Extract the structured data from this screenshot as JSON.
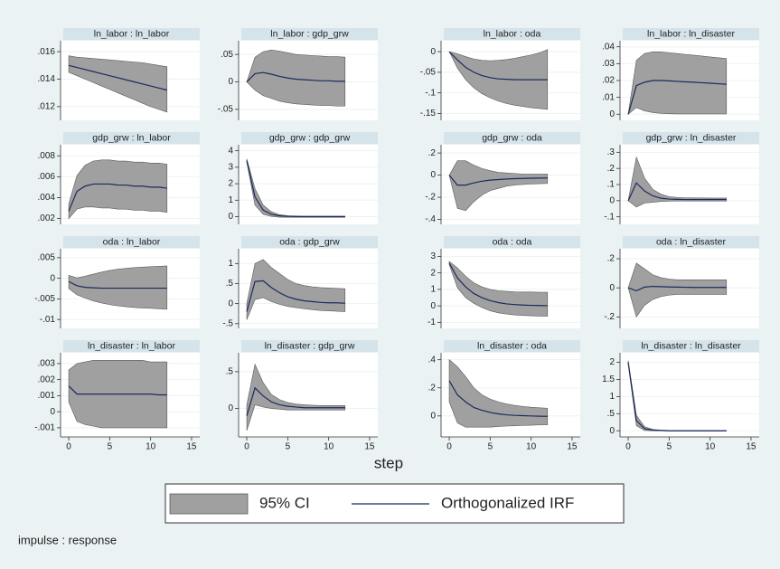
{
  "chart_data": [
    {
      "type": "line",
      "title": "ln_labor : ln_labor",
      "x": [
        0,
        1,
        2,
        3,
        4,
        5,
        6,
        7,
        8,
        9,
        10,
        11,
        12
      ],
      "xlim": [
        -1,
        16
      ],
      "ylim": [
        0.0112,
        0.0166
      ],
      "yticks": [
        {
          "value": 0.012,
          "label": ".012"
        },
        {
          "value": 0.014,
          "label": ".014"
        },
        {
          "value": 0.016,
          "label": ".016"
        }
      ],
      "irf": [
        0.015,
        0.01485,
        0.0147,
        0.01455,
        0.0144,
        0.01425,
        0.0141,
        0.01395,
        0.0138,
        0.01365,
        0.0135,
        0.01335,
        0.0132
      ],
      "ci_lower": [
        0.0145,
        0.01425,
        0.014,
        0.01375,
        0.0135,
        0.01325,
        0.013,
        0.01275,
        0.0125,
        0.01225,
        0.012,
        0.0118,
        0.0116
      ],
      "ci_upper": [
        0.0157,
        0.0156,
        0.01555,
        0.0155,
        0.01545,
        0.0154,
        0.01535,
        0.0153,
        0.01525,
        0.0152,
        0.0151,
        0.015,
        0.0149
      ]
    },
    {
      "type": "line",
      "title": "ln_labor : gdp_grw",
      "x": [
        0,
        1,
        2,
        3,
        4,
        5,
        6,
        7,
        8,
        9,
        10,
        11,
        12
      ],
      "xlim": [
        -1,
        16
      ],
      "ylim": [
        -0.065,
        0.07
      ],
      "yticks": [
        {
          "value": -0.05,
          "label": "-.05"
        },
        0,
        {
          "value": 0.05,
          "label": ".05"
        }
      ],
      "irf": [
        0,
        0.015,
        0.017,
        0.014,
        0.01,
        0.007,
        0.005,
        0.004,
        0.003,
        0.002,
        0.002,
        0.001,
        0.001
      ],
      "ci_lower": [
        0,
        -0.015,
        -0.025,
        -0.03,
        -0.035,
        -0.038,
        -0.04,
        -0.041,
        -0.042,
        -0.043,
        -0.043,
        -0.044,
        -0.044
      ],
      "ci_upper": [
        0,
        0.045,
        0.055,
        0.058,
        0.056,
        0.053,
        0.05,
        0.049,
        0.048,
        0.047,
        0.046,
        0.046,
        0.045
      ]
    },
    {
      "type": "line",
      "title": "ln_labor : oda",
      "x": [
        0,
        1,
        2,
        3,
        4,
        5,
        6,
        7,
        8,
        9,
        10,
        11,
        12
      ],
      "xlim": [
        -1,
        16
      ],
      "ylim": [
        -0.16,
        0.02
      ],
      "yticks": [
        {
          "value": -0.15,
          "label": "-.15"
        },
        {
          "value": -0.1,
          "label": "-.1"
        },
        {
          "value": -0.05,
          "label": "-.05"
        },
        0
      ],
      "irf": [
        0,
        -0.02,
        -0.038,
        -0.05,
        -0.058,
        -0.063,
        -0.066,
        -0.067,
        -0.068,
        -0.068,
        -0.068,
        -0.068,
        -0.068
      ],
      "ci_lower": [
        0,
        -0.04,
        -0.068,
        -0.088,
        -0.102,
        -0.112,
        -0.12,
        -0.126,
        -0.13,
        -0.133,
        -0.136,
        -0.138,
        -0.14
      ],
      "ci_upper": [
        0,
        -0.005,
        -0.012,
        -0.018,
        -0.021,
        -0.022,
        -0.021,
        -0.019,
        -0.016,
        -0.012,
        -0.008,
        -0.003,
        0.005
      ]
    },
    {
      "type": "line",
      "title": "ln_labor : ln_disaster",
      "x": [
        0,
        1,
        2,
        3,
        4,
        5,
        6,
        7,
        8,
        9,
        10,
        11,
        12
      ],
      "xlim": [
        -1,
        16
      ],
      "ylim": [
        -0.002,
        0.042
      ],
      "yticks": [
        0,
        {
          "value": 0.01,
          "label": ".01"
        },
        {
          "value": 0.02,
          "label": ".02"
        },
        {
          "value": 0.03,
          "label": ".03"
        },
        {
          "value": 0.04,
          "label": ".04"
        }
      ],
      "irf": [
        0,
        0.017,
        0.019,
        0.02,
        0.02,
        0.0198,
        0.0195,
        0.0192,
        0.019,
        0.0187,
        0.0184,
        0.0181,
        0.0178
      ],
      "ci_lower": [
        0,
        0.004,
        0.002,
        0.001,
        0.0005,
        0.0003,
        0.0002,
        0.0002,
        0.0002,
        0.0002,
        0.0002,
        0.0002,
        0.0002
      ],
      "ci_upper": [
        0,
        0.032,
        0.036,
        0.037,
        0.037,
        0.0365,
        0.036,
        0.0355,
        0.035,
        0.0345,
        0.034,
        0.0335,
        0.033
      ]
    },
    {
      "type": "line",
      "title": "gdp_grw : ln_labor",
      "x": [
        0,
        1,
        2,
        3,
        4,
        5,
        6,
        7,
        8,
        9,
        10,
        11,
        12
      ],
      "xlim": [
        -1,
        16
      ],
      "ylim": [
        0.0017,
        0.0088
      ],
      "yticks": [
        {
          "value": 0.002,
          "label": ".002"
        },
        {
          "value": 0.004,
          "label": ".004"
        },
        {
          "value": 0.006,
          "label": ".006"
        },
        {
          "value": 0.008,
          "label": ".008"
        }
      ],
      "irf": [
        0.0027,
        0.0046,
        0.0051,
        0.0053,
        0.0053,
        0.0053,
        0.0052,
        0.0052,
        0.0051,
        0.0051,
        0.005,
        0.005,
        0.0049
      ],
      "ci_lower": [
        0.002,
        0.0029,
        0.0031,
        0.0031,
        0.003,
        0.003,
        0.0029,
        0.0029,
        0.0028,
        0.0028,
        0.0027,
        0.0027,
        0.0026
      ],
      "ci_upper": [
        0.0034,
        0.0061,
        0.0071,
        0.0075,
        0.0076,
        0.0076,
        0.0075,
        0.0075,
        0.0074,
        0.0074,
        0.0073,
        0.0073,
        0.0072
      ]
    },
    {
      "type": "line",
      "title": "gdp_grw : gdp_grw",
      "x": [
        0,
        1,
        2,
        3,
        4,
        5,
        6,
        7,
        8,
        9,
        10,
        11,
        12
      ],
      "xlim": [
        -1,
        16
      ],
      "ylim": [
        -0.3,
        4.2
      ],
      "yticks": [
        0,
        1,
        2,
        3,
        4
      ],
      "irf": [
        3.4,
        1.2,
        0.4,
        0.15,
        0.05,
        0.02,
        0.01,
        0,
        0,
        0,
        0,
        0,
        0
      ],
      "ci_lower": [
        3.3,
        0.7,
        0.15,
        0.02,
        -0.03,
        -0.04,
        -0.04,
        -0.04,
        -0.04,
        -0.04,
        -0.04,
        -0.04,
        -0.04
      ],
      "ci_upper": [
        3.5,
        1.7,
        0.7,
        0.3,
        0.12,
        0.06,
        0.04,
        0.03,
        0.03,
        0.03,
        0.03,
        0.03,
        0.03
      ]
    },
    {
      "type": "line",
      "title": "gdp_grw : oda",
      "x": [
        0,
        1,
        2,
        3,
        4,
        5,
        6,
        7,
        8,
        9,
        10,
        11,
        12
      ],
      "xlim": [
        -1,
        16
      ],
      "ylim": [
        -0.42,
        0.25
      ],
      "yticks": [
        {
          "value": -0.4,
          "label": "-.4"
        },
        {
          "value": -0.2,
          "label": "-.2"
        },
        0,
        {
          "value": 0.2,
          "label": ".2"
        }
      ],
      "irf": [
        0,
        -0.09,
        -0.09,
        -0.07,
        -0.055,
        -0.045,
        -0.04,
        -0.035,
        -0.032,
        -0.03,
        -0.028,
        -0.027,
        -0.026
      ],
      "ci_lower": [
        0,
        -0.3,
        -0.32,
        -0.24,
        -0.18,
        -0.14,
        -0.12,
        -0.1,
        -0.09,
        -0.085,
        -0.08,
        -0.077,
        -0.075
      ],
      "ci_upper": [
        0,
        0.13,
        0.13,
        0.09,
        0.06,
        0.04,
        0.025,
        0.02,
        0.015,
        0.01,
        0.01,
        0.01,
        0.01
      ]
    },
    {
      "type": "line",
      "title": "gdp_grw : ln_disaster",
      "x": [
        0,
        1,
        2,
        3,
        4,
        5,
        6,
        7,
        8,
        9,
        10,
        11,
        12
      ],
      "xlim": [
        -1,
        16
      ],
      "ylim": [
        -0.13,
        0.33
      ],
      "yticks": [
        {
          "value": -0.1,
          "label": "-.1"
        },
        0,
        {
          "value": 0.1,
          "label": ".1"
        },
        {
          "value": 0.2,
          "label": ".2"
        },
        {
          "value": 0.3,
          "label": ".3"
        }
      ],
      "irf": [
        0,
        0.11,
        0.06,
        0.03,
        0.015,
        0.01,
        0.008,
        0.007,
        0.007,
        0.007,
        0.007,
        0.007,
        0.007
      ],
      "ci_lower": [
        0,
        -0.04,
        -0.015,
        -0.01,
        -0.005,
        -0.003,
        -0.002,
        -0.002,
        -0.002,
        -0.002,
        -0.002,
        -0.002,
        -0.002
      ],
      "ci_upper": [
        0,
        0.27,
        0.14,
        0.07,
        0.04,
        0.025,
        0.02,
        0.018,
        0.017,
        0.017,
        0.016,
        0.016,
        0.016
      ]
    },
    {
      "type": "line",
      "title": "oda : ln_labor",
      "x": [
        0,
        1,
        2,
        3,
        4,
        5,
        6,
        7,
        8,
        9,
        10,
        11,
        12
      ],
      "xlim": [
        -1,
        16
      ],
      "ylim": [
        -0.0115,
        0.0065
      ],
      "yticks": [
        {
          "value": -0.01,
          "label": "-.01"
        },
        {
          "value": -0.005,
          "label": "-.005"
        },
        0,
        {
          "value": 0.005,
          "label": ".005"
        }
      ],
      "irf": [
        -0.0008,
        -0.0018,
        -0.0022,
        -0.0023,
        -0.0024,
        -0.0024,
        -0.0024,
        -0.0024,
        -0.0024,
        -0.0024,
        -0.0024,
        -0.0024,
        -0.0024
      ],
      "ci_lower": [
        -0.0025,
        -0.004,
        -0.0048,
        -0.0055,
        -0.006,
        -0.0064,
        -0.0067,
        -0.0069,
        -0.0071,
        -0.0072,
        -0.0073,
        -0.0074,
        -0.0075
      ],
      "ci_upper": [
        0.0007,
        0.0001,
        0.0005,
        0.001,
        0.0015,
        0.0019,
        0.0022,
        0.0024,
        0.0026,
        0.0027,
        0.0028,
        0.0029,
        0.003
      ]
    },
    {
      "type": "line",
      "title": "oda : gdp_grw",
      "x": [
        0,
        1,
        2,
        3,
        4,
        5,
        6,
        7,
        8,
        9,
        10,
        11,
        12
      ],
      "xlim": [
        -1,
        16
      ],
      "ylim": [
        -0.55,
        1.3
      ],
      "yticks": [
        {
          "value": -0.5,
          "label": "-.5"
        },
        0,
        {
          "value": 0.5,
          "label": ".5"
        },
        1
      ],
      "irf": [
        -0.2,
        0.55,
        0.57,
        0.4,
        0.27,
        0.17,
        0.11,
        0.07,
        0.05,
        0.03,
        0.02,
        0.02,
        0.01
      ],
      "ci_lower": [
        -0.4,
        0.1,
        0.15,
        0.05,
        -0.02,
        -0.07,
        -0.1,
        -0.13,
        -0.15,
        -0.17,
        -0.18,
        -0.19,
        -0.2
      ],
      "ci_upper": [
        0,
        1,
        1.1,
        0.9,
        0.75,
        0.6,
        0.5,
        0.45,
        0.42,
        0.4,
        0.39,
        0.38,
        0.37
      ]
    },
    {
      "type": "line",
      "title": "oda : oda",
      "x": [
        0,
        1,
        2,
        3,
        4,
        5,
        6,
        7,
        8,
        9,
        10,
        11,
        12
      ],
      "xlim": [
        -1,
        16
      ],
      "ylim": [
        -1.2,
        3.3
      ],
      "yticks": [
        -1,
        0,
        1,
        2,
        3
      ],
      "irf": [
        2.6,
        1.7,
        1.15,
        0.75,
        0.5,
        0.32,
        0.2,
        0.12,
        0.08,
        0.05,
        0.03,
        0.02,
        0.01
      ],
      "ci_lower": [
        2.5,
        1.1,
        0.5,
        0.15,
        -0.1,
        -0.3,
        -0.42,
        -0.5,
        -0.55,
        -0.58,
        -0.6,
        -0.62,
        -0.63
      ],
      "ci_upper": [
        2.7,
        2.3,
        1.8,
        1.4,
        1.15,
        1,
        0.92,
        0.88,
        0.85,
        0.84,
        0.84,
        0.83,
        0.83
      ]
    },
    {
      "type": "line",
      "title": "oda : ln_disaster",
      "x": [
        0,
        1,
        2,
        3,
        4,
        5,
        6,
        7,
        8,
        9,
        10,
        11,
        12
      ],
      "xlim": [
        -1,
        16
      ],
      "ylim": [
        -0.26,
        0.25
      ],
      "yticks": [
        {
          "value": -0.2,
          "label": "-.2"
        },
        0,
        {
          "value": 0.2,
          "label": ".2"
        }
      ],
      "irf": [
        0,
        -0.02,
        0.005,
        0.01,
        0.008,
        0.006,
        0.005,
        0.004,
        0.003,
        0.003,
        0.003,
        0.003,
        0.003
      ],
      "ci_lower": [
        0,
        -0.2,
        -0.12,
        -0.08,
        -0.06,
        -0.05,
        -0.045,
        -0.045,
        -0.045,
        -0.045,
        -0.045,
        -0.045,
        -0.045
      ],
      "ci_upper": [
        0,
        0.17,
        0.13,
        0.09,
        0.07,
        0.06,
        0.055,
        0.055,
        0.055,
        0.055,
        0.055,
        0.055,
        0.055
      ]
    },
    {
      "type": "line",
      "title": "ln_disaster : ln_labor",
      "x": [
        0,
        1,
        2,
        3,
        4,
        5,
        6,
        7,
        8,
        9,
        10,
        11,
        12
      ],
      "xlim": [
        -1,
        16
      ],
      "xticks": [
        0,
        5,
        10,
        15
      ],
      "ylim": [
        -0.0014,
        0.0035
      ],
      "yticks": [
        {
          "value": -0.001,
          "label": "-.001"
        },
        0,
        {
          "value": 0.001,
          "label": ".001"
        },
        {
          "value": 0.002,
          "label": ".002"
        },
        {
          "value": 0.003,
          "label": ".003"
        }
      ],
      "irf": [
        0.0016,
        0.0011,
        0.0011,
        0.0011,
        0.0011,
        0.0011,
        0.0011,
        0.0011,
        0.0011,
        0.0011,
        0.0011,
        0.00105,
        0.00105
      ],
      "ci_lower": [
        0.0006,
        -0.0006,
        -0.0008,
        -0.0009,
        -0.001,
        -0.001,
        -0.001,
        -0.001,
        -0.001,
        -0.001,
        -0.001,
        -0.001,
        -0.001
      ],
      "ci_upper": [
        0.0026,
        0.003,
        0.0031,
        0.0032,
        0.0032,
        0.0032,
        0.0032,
        0.0032,
        0.0032,
        0.0032,
        0.0031,
        0.0031,
        0.0031
      ]
    },
    {
      "type": "line",
      "title": "ln_disaster : gdp_grw",
      "x": [
        0,
        1,
        2,
        3,
        4,
        5,
        6,
        7,
        8,
        9,
        10,
        11,
        12
      ],
      "xlim": [
        -1,
        16
      ],
      "xticks": [
        0,
        5,
        10,
        15
      ],
      "ylim": [
        -0.35,
        0.72
      ],
      "yticks": [
        0,
        {
          "value": 0.5,
          "label": ".5"
        }
      ],
      "irf": [
        -0.1,
        0.28,
        0.17,
        0.09,
        0.05,
        0.03,
        0.02,
        0.01,
        0.01,
        0.01,
        0.01,
        0.01,
        0.01
      ],
      "ci_lower": [
        -0.3,
        0.05,
        0.02,
        0,
        -0.01,
        -0.02,
        -0.02,
        -0.02,
        -0.02,
        -0.02,
        -0.02,
        -0.02,
        -0.02
      ],
      "ci_upper": [
        0.05,
        0.6,
        0.35,
        0.19,
        0.12,
        0.08,
        0.06,
        0.05,
        0.045,
        0.04,
        0.04,
        0.04,
        0.04
      ]
    },
    {
      "type": "line",
      "title": "ln_disaster : oda",
      "x": [
        0,
        1,
        2,
        3,
        4,
        5,
        6,
        7,
        8,
        9,
        10,
        11,
        12
      ],
      "xlim": [
        -1,
        16
      ],
      "xticks": [
        0,
        5,
        10,
        15
      ],
      "ylim": [
        -0.13,
        0.43
      ],
      "yticks": [
        0,
        {
          "value": 0.2,
          "label": ".2"
        },
        {
          "value": 0.4,
          "label": ".4"
        }
      ],
      "irf": [
        0.25,
        0.15,
        0.1,
        0.06,
        0.04,
        0.025,
        0.015,
        0.008,
        0.004,
        0.002,
        0,
        -0.002,
        -0.003
      ],
      "ci_lower": [
        0.1,
        -0.05,
        -0.08,
        -0.08,
        -0.08,
        -0.08,
        -0.075,
        -0.072,
        -0.07,
        -0.068,
        -0.066,
        -0.064,
        -0.063
      ],
      "ci_upper": [
        0.4,
        0.35,
        0.28,
        0.2,
        0.15,
        0.12,
        0.1,
        0.085,
        0.075,
        0.068,
        0.062,
        0.058,
        0.055
      ]
    },
    {
      "type": "line",
      "title": "ln_disaster : ln_disaster",
      "x": [
        0,
        1,
        2,
        3,
        4,
        5,
        6,
        7,
        8,
        9,
        10,
        11,
        12
      ],
      "xlim": [
        -1,
        16
      ],
      "xticks": [
        0,
        5,
        10,
        15
      ],
      "ylim": [
        -0.1,
        2.2
      ],
      "yticks": [
        0,
        {
          "value": 0.5,
          "label": ".5"
        },
        1,
        1.5,
        2
      ],
      "irf": [
        2,
        0.3,
        0.06,
        0.02,
        0.01,
        0,
        0,
        0,
        0,
        0,
        0,
        0,
        0
      ],
      "ci_lower": [
        1.95,
        0.15,
        0.01,
        0,
        0,
        0,
        0,
        0,
        0,
        0,
        0,
        0,
        0
      ],
      "ci_upper": [
        2.05,
        0.45,
        0.12,
        0.04,
        0.02,
        0.01,
        0.01,
        0.01,
        0.01,
        0.01,
        0.01,
        0.01,
        0.01
      ]
    }
  ],
  "xlabel": "step",
  "legend": [
    {
      "name": "95% CI",
      "color": "#a0a0a0"
    },
    {
      "name": "Orthogonalized IRF",
      "color": "#1b2a5c"
    }
  ],
  "note": "impulse : response"
}
